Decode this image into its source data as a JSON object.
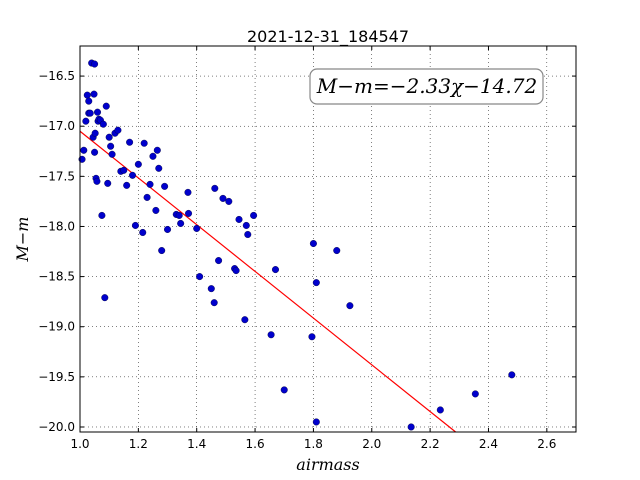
{
  "chart_data": {
    "type": "scatter",
    "title": "2021-12-31_184547",
    "xlabel": "airmass",
    "ylabel": "M−m",
    "xlim": [
      1.0,
      2.7
    ],
    "ylim": [
      -16.2,
      -20.05
    ],
    "y_inverted": true,
    "grid": true,
    "x_ticks": [
      "1.0",
      "1.2",
      "1.4",
      "1.6",
      "1.8",
      "2.0",
      "2.2",
      "2.4",
      "2.6"
    ],
    "y_ticks": [
      "−16.5",
      "−17.0",
      "−17.5",
      "−18.0",
      "−18.5",
      "−19.0",
      "−19.5",
      "−20.0"
    ],
    "annotation": "M−m=−2.33χ−14.72",
    "fit": {
      "slope": -2.33,
      "intercept": -14.72,
      "color": "#ff0000"
    },
    "marker_color": "#0000cc",
    "points": [
      [
        1.007,
        -17.33
      ],
      [
        1.013,
        -17.24
      ],
      [
        1.02,
        -16.95
      ],
      [
        1.025,
        -16.69
      ],
      [
        1.03,
        -16.75
      ],
      [
        1.03,
        -16.87
      ],
      [
        1.035,
        -16.87
      ],
      [
        1.04,
        -16.37
      ],
      [
        1.045,
        -17.11
      ],
      [
        1.048,
        -16.68
      ],
      [
        1.05,
        -17.26
      ],
      [
        1.05,
        -16.38
      ],
      [
        1.052,
        -17.07
      ],
      [
        1.055,
        -17.52
      ],
      [
        1.058,
        -17.55
      ],
      [
        1.06,
        -16.86
      ],
      [
        1.062,
        -16.95
      ],
      [
        1.065,
        -16.93
      ],
      [
        1.07,
        -16.94
      ],
      [
        1.075,
        -17.89
      ],
      [
        1.08,
        -16.98
      ],
      [
        1.085,
        -18.71
      ],
      [
        1.09,
        -16.8
      ],
      [
        1.095,
        -17.57
      ],
      [
        1.1,
        -17.11
      ],
      [
        1.105,
        -17.2
      ],
      [
        1.11,
        -17.28
      ],
      [
        1.12,
        -17.07
      ],
      [
        1.13,
        -17.04
      ],
      [
        1.14,
        -17.45
      ],
      [
        1.15,
        -17.44
      ],
      [
        1.16,
        -17.59
      ],
      [
        1.17,
        -17.16
      ],
      [
        1.18,
        -17.49
      ],
      [
        1.19,
        -17.99
      ],
      [
        1.2,
        -17.38
      ],
      [
        1.215,
        -18.06
      ],
      [
        1.22,
        -17.17
      ],
      [
        1.23,
        -17.71
      ],
      [
        1.24,
        -17.58
      ],
      [
        1.25,
        -17.3
      ],
      [
        1.26,
        -17.84
      ],
      [
        1.265,
        -17.24
      ],
      [
        1.27,
        -17.42
      ],
      [
        1.28,
        -18.24
      ],
      [
        1.29,
        -17.6
      ],
      [
        1.3,
        -18.03
      ],
      [
        1.33,
        -17.88
      ],
      [
        1.34,
        -17.89
      ],
      [
        1.345,
        -17.97
      ],
      [
        1.37,
        -17.66
      ],
      [
        1.372,
        -17.87
      ],
      [
        1.4,
        -18.02
      ],
      [
        1.41,
        -18.5
      ],
      [
        1.45,
        -18.62
      ],
      [
        1.46,
        -18.76
      ],
      [
        1.462,
        -17.62
      ],
      [
        1.475,
        -18.34
      ],
      [
        1.49,
        -17.72
      ],
      [
        1.51,
        -17.75
      ],
      [
        1.53,
        -18.42
      ],
      [
        1.535,
        -18.44
      ],
      [
        1.545,
        -17.93
      ],
      [
        1.565,
        -18.93
      ],
      [
        1.57,
        -17.99
      ],
      [
        1.575,
        -18.08
      ],
      [
        1.595,
        -17.89
      ],
      [
        1.655,
        -19.08
      ],
      [
        1.67,
        -18.43
      ],
      [
        1.7,
        -19.63
      ],
      [
        1.795,
        -19.1
      ],
      [
        1.8,
        -18.17
      ],
      [
        1.81,
        -18.56
      ],
      [
        1.81,
        -19.95
      ],
      [
        1.88,
        -18.24
      ],
      [
        1.925,
        -18.79
      ],
      [
        2.135,
        -20.0
      ],
      [
        2.235,
        -19.83
      ],
      [
        2.355,
        -19.67
      ],
      [
        2.48,
        -19.48
      ]
    ]
  }
}
